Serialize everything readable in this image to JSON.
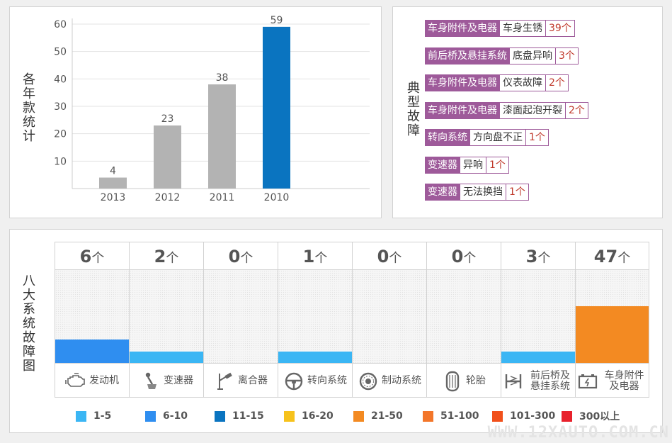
{
  "year_panel": {
    "title": "各年款统计"
  },
  "fault_panel": {
    "title": "典型故障",
    "color": "#9e5a9a",
    "items": [
      {
        "category": "车身附件及电器",
        "name": "车身生锈",
        "count": "39个"
      },
      {
        "category": "前后桥及悬挂系统",
        "name": "底盘异响",
        "count": "3个"
      },
      {
        "category": "车身附件及电器",
        "name": "仪表故障",
        "count": "2个"
      },
      {
        "category": "车身附件及电器",
        "name": "漆面起泡开裂",
        "count": "2个"
      },
      {
        "category": "转向系统",
        "name": "方向盘不正",
        "count": "1个"
      },
      {
        "category": "变速器",
        "name": "异响",
        "count": "1个"
      },
      {
        "category": "变速器",
        "name": "无法换挡",
        "count": "1个"
      }
    ]
  },
  "system_panel": {
    "title": "八大系统故障图",
    "unit": "个",
    "systems": [
      {
        "name": "发动机",
        "count": "6",
        "value": 6,
        "color": "#2f8ef0",
        "icon": "engine-icon"
      },
      {
        "name": "变速器",
        "count": "2",
        "value": 2,
        "color": "#3bb6f4",
        "icon": "gear-shift-icon"
      },
      {
        "name": "离合器",
        "count": "0",
        "value": 0,
        "color": "#3bb6f4",
        "icon": "clutch-pedal-icon"
      },
      {
        "name": "转向系统",
        "count": "1",
        "value": 1,
        "color": "#3bb6f4",
        "icon": "steering-wheel-icon"
      },
      {
        "name": "制动系统",
        "count": "0",
        "value": 0,
        "color": "#3bb6f4",
        "icon": "brake-disc-icon"
      },
      {
        "name": "轮胎",
        "count": "0",
        "value": 0,
        "color": "#3bb6f4",
        "icon": "tire-icon"
      },
      {
        "name": "前后桥及悬挂系统",
        "count": "3",
        "value": 3,
        "color": "#3bb6f4",
        "icon": "suspension-icon"
      },
      {
        "name": "车身附件及电器",
        "count": "47",
        "value": 47,
        "color": "#f38a22",
        "icon": "battery-icon"
      }
    ],
    "legend": [
      {
        "label": "1-5",
        "color": "#3bb6f4"
      },
      {
        "label": "6-10",
        "color": "#2f8ef0"
      },
      {
        "label": "11-15",
        "color": "#0a74c0"
      },
      {
        "label": "16-20",
        "color": "#f6c21c"
      },
      {
        "label": "21-50",
        "color": "#f38a22"
      },
      {
        "label": "51-100",
        "color": "#f3762a"
      },
      {
        "label": "101-300",
        "color": "#f1501b"
      },
      {
        "label": "300以上",
        "color": "#e8212c"
      }
    ]
  },
  "watermark": "WWW.12XAUTO.COM.CN",
  "chart_data": {
    "type": "bar",
    "categories": [
      "2013",
      "2012",
      "2011",
      "2010"
    ],
    "values": [
      4,
      23,
      38,
      59
    ],
    "title": "",
    "xlabel": "",
    "ylabel": "各年款统计",
    "ylim": [
      0,
      60
    ],
    "yticks": [
      10,
      20,
      30,
      40,
      50,
      60
    ],
    "grid": true,
    "colors": [
      "#b3b3b3",
      "#b3b3b3",
      "#b3b3b3",
      "#0a74c0"
    ]
  }
}
